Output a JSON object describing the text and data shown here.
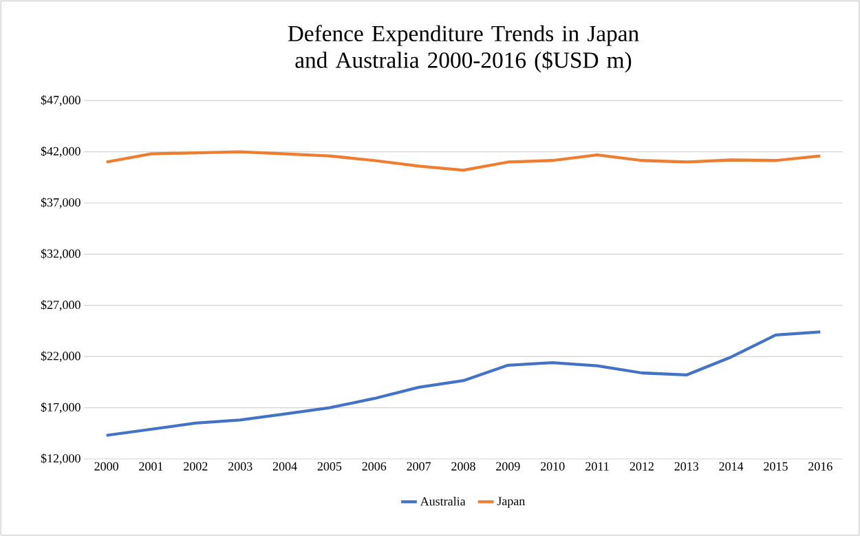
{
  "chart_data": {
    "type": "line",
    "title": "Defence Expenditure Trends in Japan and Australia 2000-2016 ($USD m)",
    "categories": [
      "2000",
      "2001",
      "2002",
      "2003",
      "2004",
      "2005",
      "2006",
      "2007",
      "2008",
      "2009",
      "2010",
      "2011",
      "2012",
      "2013",
      "2014",
      "2015",
      "2016"
    ],
    "series": [
      {
        "name": "Australia",
        "color": "#4472c4",
        "values": [
          14300,
          14900,
          15500,
          15800,
          16400,
          17000,
          17900,
          19000,
          19650,
          21150,
          21400,
          21100,
          20400,
          20200,
          21950,
          24100,
          24400
        ]
      },
      {
        "name": "Japan",
        "color": "#ed7d31",
        "values": [
          41000,
          41800,
          41900,
          42000,
          41800,
          41600,
          41150,
          40600,
          40200,
          41000,
          41150,
          41700,
          41150,
          41000,
          41200,
          41150,
          41600
        ]
      }
    ],
    "ylim": [
      12000,
      47000
    ],
    "yticks": [
      {
        "value": 12000,
        "label": "$12,000"
      },
      {
        "value": 17000,
        "label": "$17,000"
      },
      {
        "value": 22000,
        "label": "$22,000"
      },
      {
        "value": 27000,
        "label": "$27,000"
      },
      {
        "value": 32000,
        "label": "$32,000"
      },
      {
        "value": 37000,
        "label": "$37,000"
      },
      {
        "value": 42000,
        "label": "$42,000"
      },
      {
        "value": 47000,
        "label": "$47,000"
      }
    ],
    "grid": "y",
    "legend": "bottom",
    "marker": "none",
    "line_style": "solid"
  }
}
